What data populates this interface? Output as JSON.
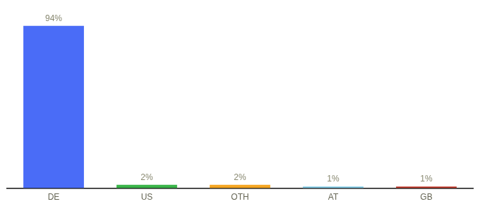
{
  "chart_data": {
    "type": "bar",
    "categories": [
      "DE",
      "US",
      "OTH",
      "AT",
      "GB"
    ],
    "values": [
      94,
      2,
      2,
      1,
      1
    ],
    "value_labels": [
      "94%",
      "2%",
      "2%",
      "1%",
      "1%"
    ],
    "data_labels": true,
    "colors": [
      "#4a6cf7",
      "#3bb54a",
      "#f5a623",
      "#7ec8e3",
      "#c0392b"
    ],
    "ylim": [
      0,
      100
    ],
    "tick_labels": "x",
    "grid": false
  }
}
